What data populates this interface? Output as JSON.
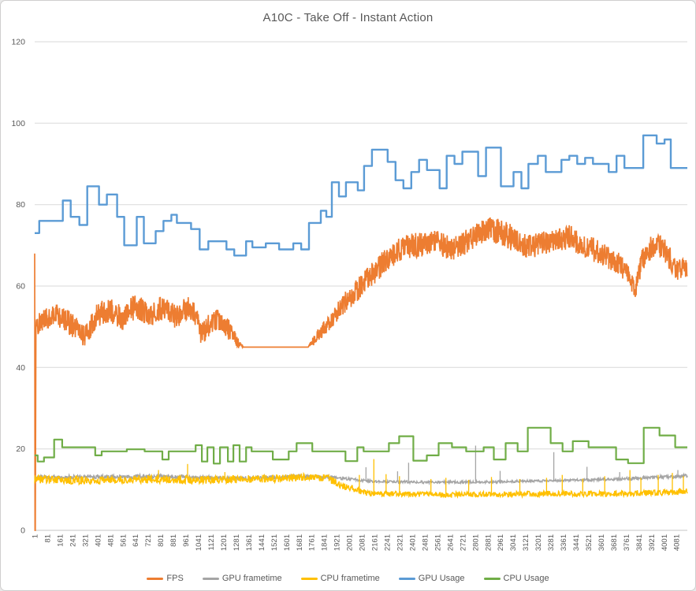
{
  "chart_data": {
    "type": "line",
    "title": "A10C - Take Off - Instant Action",
    "xlabel": "",
    "ylabel": "",
    "grid": true,
    "legend_position": "bottom",
    "colors": {
      "text": "#595959",
      "grid": "#D9D9D9",
      "axis": "#C6C6C6",
      "frame_border": "#CFCECE",
      "background": "#FFFFFF"
    },
    "y_axis": {
      "min": 0,
      "max": 120,
      "tick_step": 20,
      "ticks": [
        0,
        20,
        40,
        60,
        80,
        100,
        120
      ]
    },
    "x_axis": {
      "min": 1,
      "max": 4150,
      "tick_step": 80,
      "ticks": [
        1,
        81,
        161,
        241,
        321,
        401,
        481,
        561,
        641,
        721,
        801,
        881,
        961,
        1041,
        1121,
        1201,
        1281,
        1361,
        1441,
        1521,
        1601,
        1681,
        1761,
        1841,
        1921,
        2001,
        2081,
        2161,
        2241,
        2321,
        2401,
        2481,
        2561,
        2641,
        2721,
        2801,
        2881,
        2961,
        3041,
        3121,
        3201,
        3281,
        3361,
        3441,
        3521,
        3601,
        3681,
        3761,
        3841,
        3921,
        4001,
        4081
      ]
    },
    "series": [
      {
        "name": "FPS",
        "color": "#ED7D31",
        "style": "noisy",
        "width": 1.7,
        "seed": 11,
        "sample_step": 2,
        "anchors": [
          [
            1,
            68,
            0
          ],
          [
            3,
            0,
            0
          ],
          [
            5,
            0,
            0
          ],
          [
            9,
            50,
            2.5
          ],
          [
            60,
            52,
            2.6
          ],
          [
            150,
            53,
            3
          ],
          [
            250,
            50,
            3
          ],
          [
            320,
            47.5,
            2.6
          ],
          [
            400,
            53,
            3
          ],
          [
            480,
            54,
            3
          ],
          [
            560,
            52,
            3
          ],
          [
            640,
            55,
            3.2
          ],
          [
            740,
            53,
            3
          ],
          [
            820,
            55,
            3.2
          ],
          [
            900,
            52,
            3
          ],
          [
            980,
            55,
            3
          ],
          [
            1030,
            53,
            3
          ],
          [
            1060,
            48,
            2.6
          ],
          [
            1120,
            51,
            2.8
          ],
          [
            1180,
            52,
            2.8
          ],
          [
            1240,
            49,
            2.5
          ],
          [
            1290,
            46,
            1.5
          ],
          [
            1330,
            45,
            0
          ],
          [
            1740,
            45,
            0
          ],
          [
            1780,
            47,
            1.5
          ],
          [
            1850,
            50,
            2
          ],
          [
            1950,
            55,
            2.5
          ],
          [
            2050,
            59,
            2.8
          ],
          [
            2150,
            63,
            3
          ],
          [
            2250,
            67,
            3
          ],
          [
            2350,
            70,
            3.1
          ],
          [
            2450,
            70,
            3.3
          ],
          [
            2550,
            71,
            3
          ],
          [
            2650,
            69,
            3
          ],
          [
            2750,
            71,
            3
          ],
          [
            2870,
            74,
            3.1
          ],
          [
            2990,
            73,
            3.3
          ],
          [
            3100,
            70,
            3
          ],
          [
            3200,
            70,
            3
          ],
          [
            3300,
            71.5,
            3
          ],
          [
            3400,
            72,
            3
          ],
          [
            3500,
            70,
            3
          ],
          [
            3600,
            68,
            3
          ],
          [
            3700,
            66,
            2.8
          ],
          [
            3770,
            63,
            2.5
          ],
          [
            3820,
            59,
            2
          ],
          [
            3860,
            66,
            3
          ],
          [
            3950,
            71,
            3
          ],
          [
            4020,
            68,
            3
          ],
          [
            4080,
            64,
            2.6
          ],
          [
            4150,
            65,
            2.6
          ]
        ],
        "spikes": []
      },
      {
        "name": "GPU frametime",
        "color": "#A5A5A5",
        "style": "noisy",
        "width": 1.5,
        "seed": 23,
        "sample_step": 3,
        "anchors": [
          [
            1,
            13.0,
            0.5
          ],
          [
            400,
            13.1,
            0.5
          ],
          [
            800,
            13.3,
            0.5
          ],
          [
            1200,
            12.8,
            0.45
          ],
          [
            1500,
            13.0,
            0.45
          ],
          [
            1750,
            13.3,
            0.45
          ],
          [
            1950,
            12.8,
            0.35
          ],
          [
            2150,
            12.0,
            0.3
          ],
          [
            2500,
            11.8,
            0.3
          ],
          [
            2900,
            11.9,
            0.3
          ],
          [
            3300,
            12.2,
            0.3
          ],
          [
            3700,
            12.6,
            0.35
          ],
          [
            4000,
            13.1,
            0.45
          ],
          [
            4150,
            13.3,
            0.5
          ]
        ],
        "spikes": [
          [
            2107,
            15.5
          ],
          [
            2308,
            14.5
          ],
          [
            2378,
            16.6
          ],
          [
            2804,
            20.8
          ],
          [
            2960,
            14.6
          ],
          [
            3301,
            19.2
          ],
          [
            3512,
            15.6
          ],
          [
            3720,
            14.3
          ],
          [
            4090,
            14.8
          ]
        ]
      },
      {
        "name": "CPU frametime",
        "color": "#FFC000",
        "style": "noisy",
        "width": 1.5,
        "seed": 37,
        "sample_step": 3,
        "anchors": [
          [
            1,
            12.6,
            1.1
          ],
          [
            300,
            12.3,
            1.0
          ],
          [
            700,
            12.6,
            1.0
          ],
          [
            1100,
            12.4,
            1.0
          ],
          [
            1500,
            12.7,
            0.95
          ],
          [
            1750,
            13.1,
            0.95
          ],
          [
            1860,
            12.8,
            0.9
          ],
          [
            1980,
            10.6,
            0.85
          ],
          [
            2120,
            9.1,
            0.7
          ],
          [
            2500,
            8.8,
            0.65
          ],
          [
            2900,
            8.8,
            0.65
          ],
          [
            3300,
            9.0,
            0.7
          ],
          [
            3700,
            9.0,
            0.7
          ],
          [
            4000,
            9.3,
            0.8
          ],
          [
            4150,
            9.6,
            0.8
          ]
        ],
        "spikes": [
          [
            788,
            14.8
          ],
          [
            973,
            16.3
          ],
          [
            1210,
            14.3
          ],
          [
            2065,
            13.6
          ],
          [
            2157,
            17.5
          ],
          [
            2235,
            13.8
          ],
          [
            2320,
            13.3
          ],
          [
            2520,
            12.6
          ],
          [
            2615,
            12.9
          ],
          [
            2760,
            12.4
          ],
          [
            2905,
            13.1
          ],
          [
            3085,
            12.6
          ],
          [
            3255,
            12.9
          ],
          [
            3355,
            13.6
          ],
          [
            3485,
            12.7
          ],
          [
            3625,
            13.3
          ],
          [
            3785,
            14.8
          ],
          [
            3855,
            12.9
          ],
          [
            3965,
            13.6
          ],
          [
            4055,
            14.1
          ],
          [
            4125,
            13.3
          ]
        ]
      },
      {
        "name": "GPU Usage",
        "color": "#5B9BD5",
        "style": "step",
        "width": 2.4,
        "steps": [
          [
            1,
            73
          ],
          [
            30,
            76
          ],
          [
            180,
            81
          ],
          [
            230,
            77
          ],
          [
            285,
            75
          ],
          [
            335,
            84.5
          ],
          [
            410,
            80
          ],
          [
            460,
            82.5
          ],
          [
            525,
            77
          ],
          [
            570,
            70
          ],
          [
            650,
            77
          ],
          [
            695,
            70.5
          ],
          [
            770,
            73.5
          ],
          [
            820,
            76
          ],
          [
            870,
            77.5
          ],
          [
            905,
            75.5
          ],
          [
            995,
            74
          ],
          [
            1050,
            69
          ],
          [
            1105,
            71
          ],
          [
            1220,
            69
          ],
          [
            1270,
            67.5
          ],
          [
            1345,
            71
          ],
          [
            1385,
            69.5
          ],
          [
            1470,
            70.5
          ],
          [
            1555,
            69
          ],
          [
            1645,
            70.5
          ],
          [
            1695,
            69
          ],
          [
            1745,
            75.5
          ],
          [
            1820,
            78.5
          ],
          [
            1855,
            77
          ],
          [
            1890,
            85.5
          ],
          [
            1935,
            82
          ],
          [
            1980,
            85.5
          ],
          [
            2055,
            83.5
          ],
          [
            2095,
            89.5
          ],
          [
            2145,
            93.5
          ],
          [
            2245,
            90.5
          ],
          [
            2295,
            86
          ],
          [
            2345,
            84
          ],
          [
            2395,
            88
          ],
          [
            2445,
            91
          ],
          [
            2495,
            88.5
          ],
          [
            2575,
            84
          ],
          [
            2620,
            92
          ],
          [
            2670,
            90
          ],
          [
            2720,
            93
          ],
          [
            2820,
            87
          ],
          [
            2870,
            94
          ],
          [
            2965,
            84.5
          ],
          [
            3045,
            88
          ],
          [
            3095,
            84
          ],
          [
            3140,
            90
          ],
          [
            3200,
            92
          ],
          [
            3250,
            88
          ],
          [
            3350,
            91
          ],
          [
            3400,
            92
          ],
          [
            3450,
            90
          ],
          [
            3500,
            91.5
          ],
          [
            3550,
            90
          ],
          [
            3650,
            88
          ],
          [
            3700,
            92
          ],
          [
            3750,
            89
          ],
          [
            3870,
            97
          ],
          [
            3955,
            95
          ],
          [
            4005,
            96
          ],
          [
            4045,
            89
          ],
          [
            4150,
            89
          ]
        ]
      },
      {
        "name": "CPU Usage",
        "color": "#70AD47",
        "style": "step",
        "width": 2.2,
        "steps": [
          [
            1,
            18.4
          ],
          [
            20,
            16.9
          ],
          [
            60,
            17.9
          ],
          [
            125,
            22.3
          ],
          [
            176,
            20.4
          ],
          [
            386,
            18.4
          ],
          [
            427,
            19.4
          ],
          [
            587,
            19.9
          ],
          [
            700,
            19.4
          ],
          [
            813,
            17.4
          ],
          [
            853,
            19.4
          ],
          [
            1024,
            20.9
          ],
          [
            1064,
            16.9
          ],
          [
            1099,
            20.4
          ],
          [
            1139,
            16.4
          ],
          [
            1179,
            20.4
          ],
          [
            1229,
            16.9
          ],
          [
            1264,
            20.9
          ],
          [
            1304,
            16.9
          ],
          [
            1345,
            20.4
          ],
          [
            1380,
            19.4
          ],
          [
            1515,
            17.4
          ],
          [
            1616,
            19.4
          ],
          [
            1666,
            21.4
          ],
          [
            1766,
            19.4
          ],
          [
            1977,
            17.0
          ],
          [
            2052,
            20.4
          ],
          [
            2092,
            19.4
          ],
          [
            2253,
            21.4
          ],
          [
            2318,
            23.1
          ],
          [
            2408,
            17.1
          ],
          [
            2494,
            18.4
          ],
          [
            2569,
            21.4
          ],
          [
            2654,
            20.4
          ],
          [
            2744,
            19.4
          ],
          [
            2855,
            20.4
          ],
          [
            2920,
            17.4
          ],
          [
            2995,
            21.4
          ],
          [
            3071,
            19.4
          ],
          [
            3136,
            25.2
          ],
          [
            3281,
            21.4
          ],
          [
            3357,
            19.4
          ],
          [
            3422,
            21.9
          ],
          [
            3522,
            20.4
          ],
          [
            3697,
            17.4
          ],
          [
            3773,
            16.5
          ],
          [
            3873,
            25.2
          ],
          [
            3973,
            23.3
          ],
          [
            4073,
            20.4
          ],
          [
            4150,
            20.4
          ]
        ]
      }
    ]
  }
}
